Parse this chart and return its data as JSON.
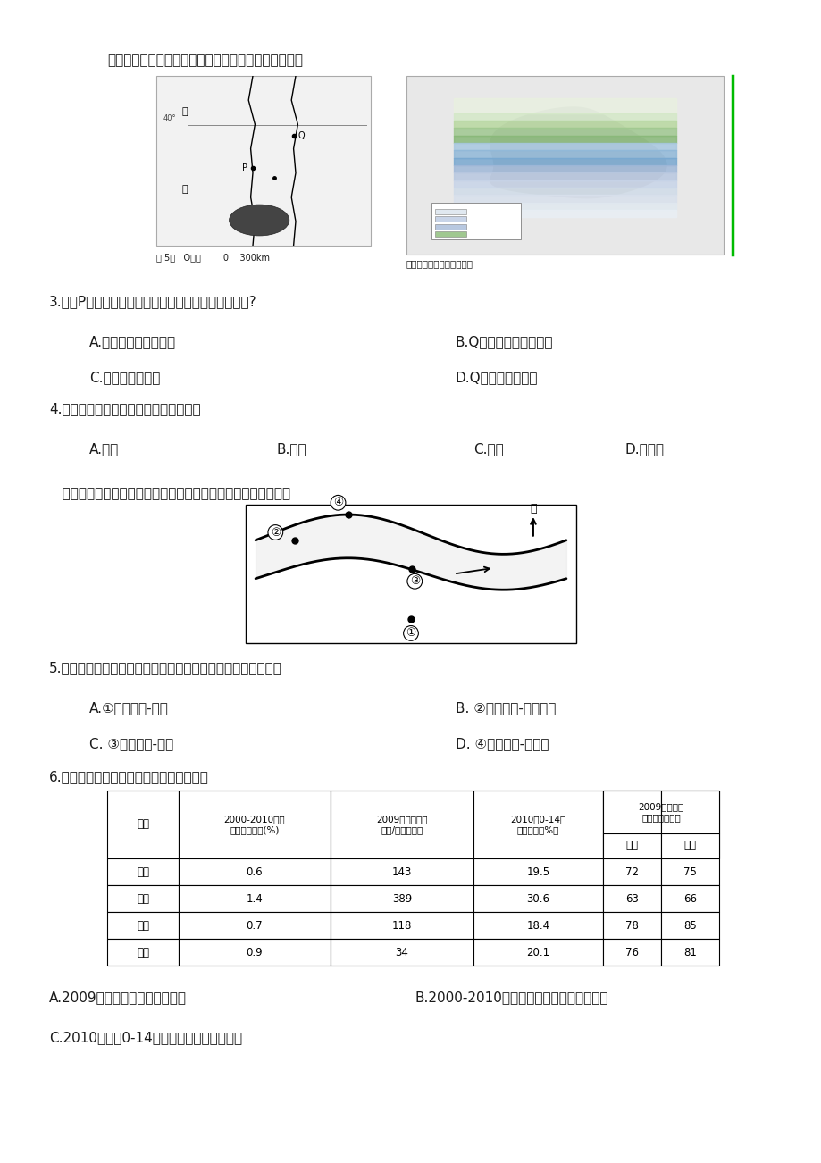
{
  "bg_color": "#ffffff",
  "page_width": 9.2,
  "page_height": 13.02,
  "intro_text": "图为某区域示意图及对应的湖泊蓄水情况。读图回答：",
  "q3_text": "3.若在P处建大崴，河流的水文特征可能产生哪些影响?",
  "q3_A": "A.湖泊的调蓄能力减弱",
  "q3_B": "B.Q处河流的含沙量减少",
  "q3_C": "C.湖泊水量将变小",
  "q3_D": "D.Q处河流不受影响",
  "q4_text": "4.若该河在北半球，则湖泊蓄水最大是在",
  "q4_A": "A.冬季",
  "q4_B": "B.夏季",
  "q4_C": "C.全年",
  "q4_D": "D.春秋季",
  "flow_intro": "   如图流水地貌是由流水塑造而形成的地表形态，某河段示意图。",
  "q5_text": "5.在图所示河流的数码处，外力作用及土地利用类型，正确的是",
  "q5_A": "A.①携运作用-农田",
  "q5_B": "B. ②堆积作用-住宅用地",
  "q5_C": "C. ③侵蚀作用-港口",
  "q5_D": "D. ④沉积作用-防洪堤",
  "q6_text": "6.表为四个国家的主要人口指标，据表可知",
  "table_data": [
    [
      "中国",
      "0.6",
      "143",
      "19.5",
      "72",
      "75"
    ],
    [
      "印度",
      "1.4",
      "389",
      "30.6",
      "63",
      "66"
    ],
    [
      "法国",
      "0.7",
      "118",
      "18.4",
      "78",
      "85"
    ],
    [
      "美国",
      "0.9",
      "34",
      "20.1",
      "76",
      "81"
    ]
  ],
  "q6_A": "A.2009年中国人口密度高于印度",
  "q6_B": "B.2000-2010年期间中国人口增长速度最慢",
  "q6_C": "C.2010年中国0-14岁人口比重与法国最接近",
  "th1": "国家",
  "th2": "2000-2010年人\n口年均增长率(%)",
  "th3": "2009年人口密度\n（人/平方千米）",
  "th4": "2010年0-14岁\n人口比重（%）",
  "th5": "2009年出生时\n预期寿命（岁）",
  "th5a": "男性",
  "th5b": "女性",
  "text_color": "#1a1a1a"
}
